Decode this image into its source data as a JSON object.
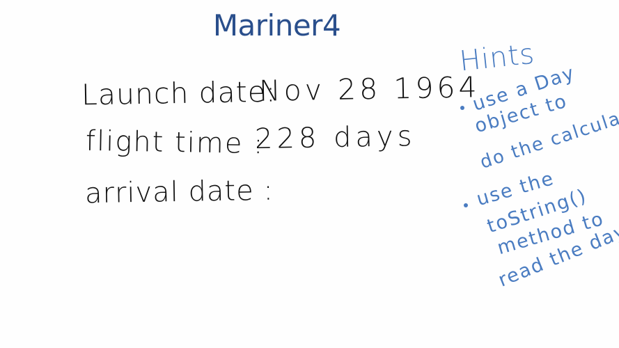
{
  "title": "Mariner4",
  "fields": {
    "launch_label": "Launch date",
    "launch_value": "Nov 28 1964",
    "flight_label": "flight time",
    "flight_value": "228 days",
    "arrival_label": "arrival date",
    "colon": ":"
  },
  "hints": {
    "heading": "Hints",
    "hint1": [
      "use a Day",
      "object to",
      "do the calculation"
    ],
    "hint2": [
      "use the",
      "toString()",
      "method to",
      "read the day"
    ]
  },
  "colors": {
    "title": "#2a4f8c",
    "ink": "#111111",
    "hint_ink": "#4a7cc1"
  }
}
